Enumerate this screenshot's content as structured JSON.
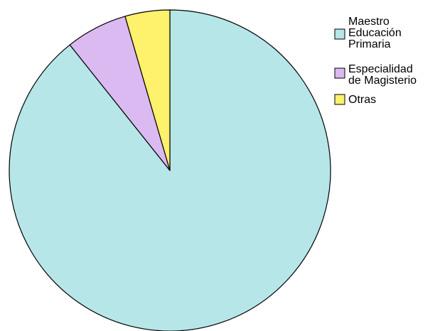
{
  "chart_data": {
    "type": "pie",
    "slices": [
      {
        "label": "Maestro Educación Primaria",
        "label_lines": [
          "Maestro",
          "Educación",
          "Primaria"
        ],
        "value": 89.3,
        "color": "#b6e6e8"
      },
      {
        "label": "Especialidad de Magisterio",
        "label_lines": [
          "Especialidad",
          "de Magisterio"
        ],
        "value": 6.2,
        "color": "#dbb9f1"
      },
      {
        "label": "Otras",
        "label_lines": [
          "Otras"
        ],
        "value": 4.5,
        "color": "#fef16b"
      }
    ],
    "start_angle": "12 o'clock",
    "direction": "clockwise",
    "legend_position": "top-right",
    "stroke_color": "#000000"
  }
}
